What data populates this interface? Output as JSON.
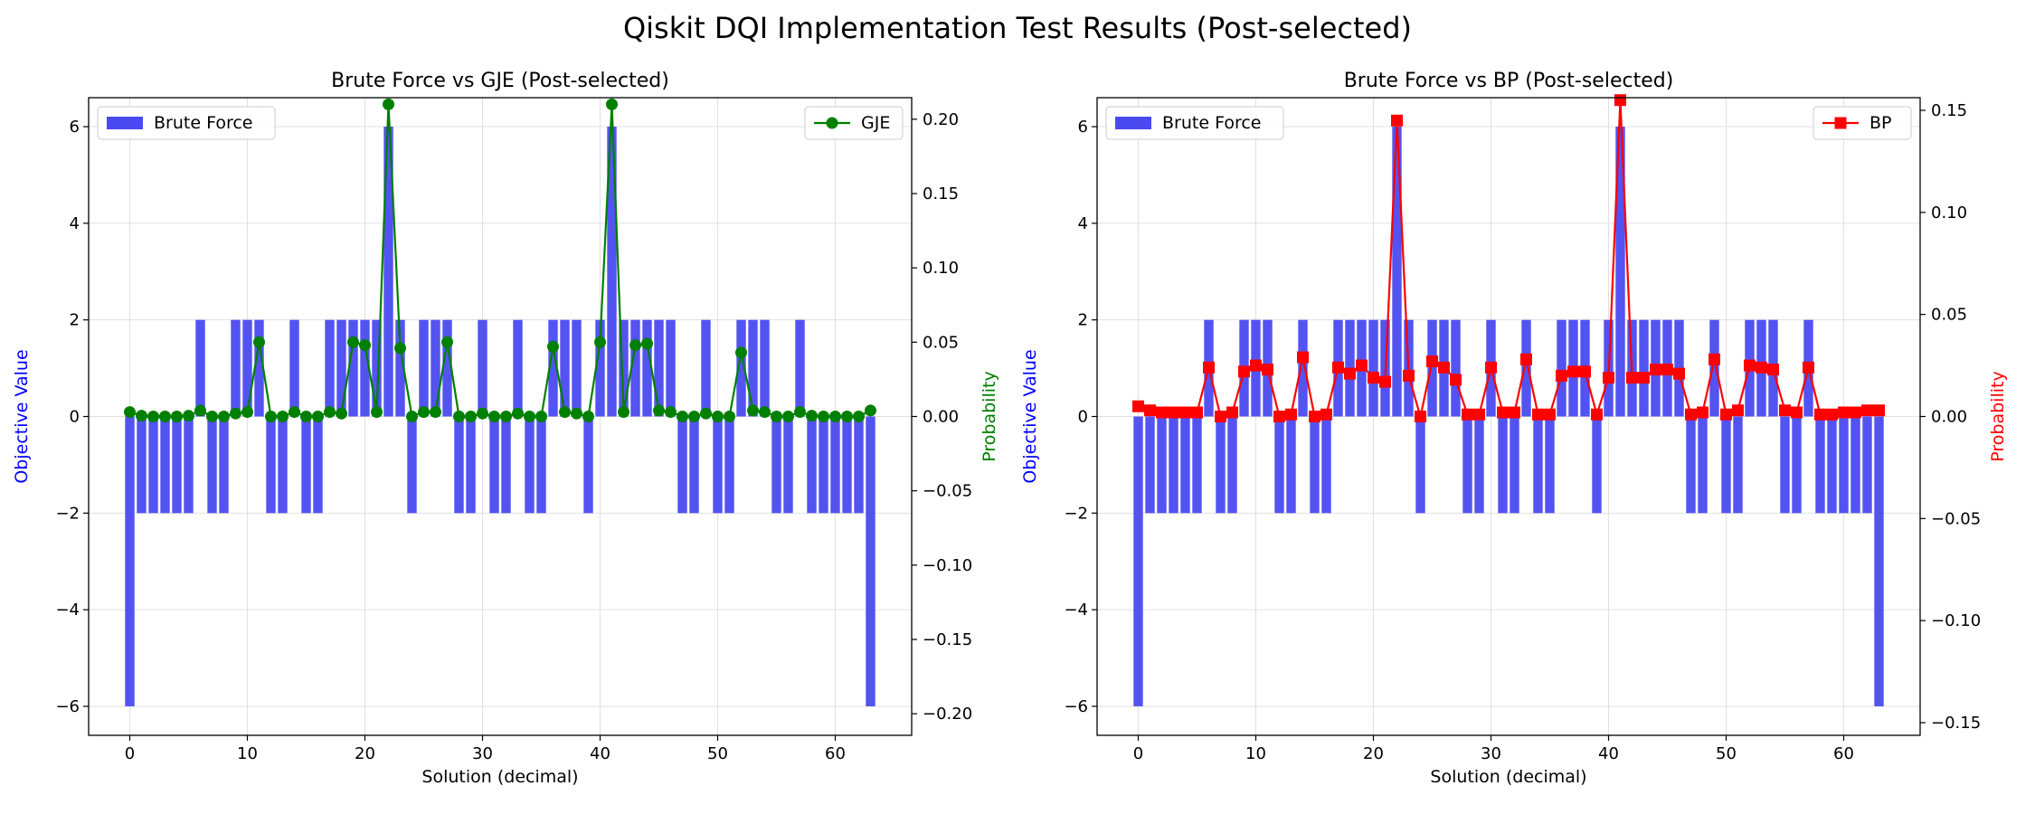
{
  "suptitle": "Qiskit DQI Implementation Test Results (Post-selected)",
  "colors": {
    "bar": "#4a4af0",
    "gje": "#008000",
    "bp": "#ff0000",
    "left_label": "#0000ff",
    "grid": "#e0e0e0"
  },
  "chart_data": [
    {
      "type": "bar",
      "title": "Brute Force vs GJE (Post-selected)",
      "xlabel": "Solution (decimal)",
      "ylabel": "Objective Value",
      "ylabel2": "Probability",
      "xlim": [
        -3.5,
        66.5
      ],
      "ylim": [
        -6.6,
        6.6
      ],
      "ylim2": [
        -0.2145,
        0.2145
      ],
      "xticks": [
        0,
        10,
        20,
        30,
        40,
        50,
        60
      ],
      "yticks": [
        -6,
        -4,
        -2,
        0,
        2,
        4,
        6
      ],
      "yticks2": [
        -0.2,
        -0.15,
        -0.1,
        -0.05,
        0.0,
        0.05,
        0.1,
        0.15,
        0.2
      ],
      "legend_bars": "Brute Force",
      "legend_line": "GJE",
      "line_marker": "circle",
      "x": [
        0,
        1,
        2,
        3,
        4,
        5,
        6,
        7,
        8,
        9,
        10,
        11,
        12,
        13,
        14,
        15,
        16,
        17,
        18,
        19,
        20,
        21,
        22,
        23,
        24,
        25,
        26,
        27,
        28,
        29,
        30,
        31,
        32,
        33,
        34,
        35,
        36,
        37,
        38,
        39,
        40,
        41,
        42,
        43,
        44,
        45,
        46,
        47,
        48,
        49,
        50,
        51,
        52,
        53,
        54,
        55,
        56,
        57,
        58,
        59,
        60,
        61,
        62,
        63
      ],
      "bar_values": [
        -6,
        -2,
        -2,
        -2,
        -2,
        -2,
        2,
        -2,
        -2,
        2,
        2,
        2,
        -2,
        -2,
        2,
        -2,
        -2,
        2,
        2,
        2,
        2,
        2,
        6,
        2,
        -2,
        2,
        2,
        2,
        -2,
        -2,
        2,
        -2,
        -2,
        2,
        -2,
        -2,
        2,
        2,
        2,
        -2,
        2,
        6,
        2,
        2,
        2,
        2,
        2,
        -2,
        -2,
        2,
        -2,
        -2,
        2,
        2,
        2,
        -2,
        -2,
        2,
        -2,
        -2,
        -2,
        -2,
        -2,
        -6
      ],
      "line_values": [
        0.003,
        0.0005,
        0.0,
        0.0,
        0.0,
        0.0005,
        0.004,
        0.0,
        0.0,
        0.002,
        0.003,
        0.05,
        0.0,
        0.0,
        0.003,
        0.0,
        0.0,
        0.003,
        0.002,
        0.05,
        0.048,
        0.003,
        0.21,
        0.046,
        0.0,
        0.003,
        0.003,
        0.05,
        0.0,
        0.0,
        0.002,
        0.0,
        0.0,
        0.002,
        0.0,
        0.0,
        0.047,
        0.003,
        0.002,
        0.0,
        0.05,
        0.21,
        0.003,
        0.048,
        0.049,
        0.004,
        0.003,
        0.0,
        0.0,
        0.002,
        0.0,
        0.0,
        0.043,
        0.004,
        0.003,
        0.0,
        0.0,
        0.003,
        0.0005,
        0.0,
        0.0,
        0.0,
        0.0,
        0.004
      ]
    },
    {
      "type": "bar",
      "title": "Brute Force vs BP (Post-selected)",
      "xlabel": "Solution (decimal)",
      "ylabel": "Objective Value",
      "ylabel2": "Probability",
      "xlim": [
        -3.5,
        66.5
      ],
      "ylim": [
        -6.6,
        6.6
      ],
      "ylim2": [
        -0.1562,
        0.1562
      ],
      "xticks": [
        0,
        10,
        20,
        30,
        40,
        50,
        60
      ],
      "yticks": [
        -6,
        -4,
        -2,
        0,
        2,
        4,
        6
      ],
      "yticks2": [
        -0.15,
        -0.1,
        -0.05,
        0.0,
        0.05,
        0.1,
        0.15
      ],
      "legend_bars": "Brute Force",
      "legend_line": "BP",
      "line_marker": "square",
      "x": [
        0,
        1,
        2,
        3,
        4,
        5,
        6,
        7,
        8,
        9,
        10,
        11,
        12,
        13,
        14,
        15,
        16,
        17,
        18,
        19,
        20,
        21,
        22,
        23,
        24,
        25,
        26,
        27,
        28,
        29,
        30,
        31,
        32,
        33,
        34,
        35,
        36,
        37,
        38,
        39,
        40,
        41,
        42,
        43,
        44,
        45,
        46,
        47,
        48,
        49,
        50,
        51,
        52,
        53,
        54,
        55,
        56,
        57,
        58,
        59,
        60,
        61,
        62,
        63
      ],
      "bar_values": [
        -6,
        -2,
        -2,
        -2,
        -2,
        -2,
        2,
        -2,
        -2,
        2,
        2,
        2,
        -2,
        -2,
        2,
        -2,
        -2,
        2,
        2,
        2,
        2,
        2,
        6,
        2,
        -2,
        2,
        2,
        2,
        -2,
        -2,
        2,
        -2,
        -2,
        2,
        -2,
        -2,
        2,
        2,
        2,
        -2,
        2,
        6,
        2,
        2,
        2,
        2,
        2,
        -2,
        -2,
        2,
        -2,
        -2,
        2,
        2,
        2,
        -2,
        -2,
        2,
        -2,
        -2,
        -2,
        -2,
        -2,
        -6
      ],
      "line_values": [
        0.005,
        0.003,
        0.002,
        0.002,
        0.002,
        0.002,
        0.024,
        0.0,
        0.002,
        0.022,
        0.025,
        0.023,
        0.0,
        0.001,
        0.029,
        0.0,
        0.001,
        0.024,
        0.021,
        0.025,
        0.019,
        0.017,
        0.145,
        0.02,
        0.0,
        0.027,
        0.024,
        0.018,
        0.001,
        0.001,
        0.024,
        0.002,
        0.002,
        0.028,
        0.001,
        0.001,
        0.02,
        0.022,
        0.022,
        0.001,
        0.019,
        0.155,
        0.019,
        0.019,
        0.023,
        0.023,
        0.021,
        0.001,
        0.002,
        0.028,
        0.001,
        0.003,
        0.025,
        0.024,
        0.023,
        0.003,
        0.002,
        0.024,
        0.001,
        0.001,
        0.002,
        0.002,
        0.003,
        0.003
      ]
    }
  ]
}
